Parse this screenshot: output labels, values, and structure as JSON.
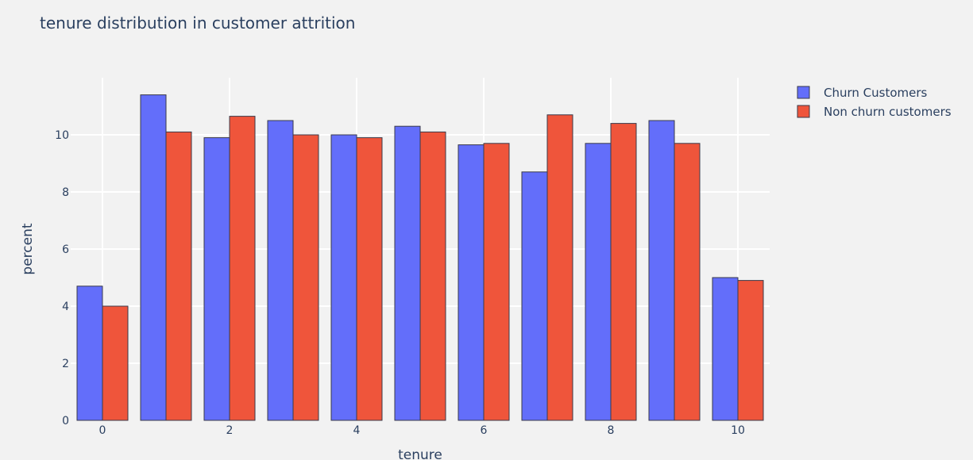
{
  "chart_data": {
    "type": "bar",
    "title": "tenure distribution in customer attrition",
    "xlabel": "tenure",
    "ylabel": "percent",
    "x": [
      0,
      1,
      2,
      3,
      4,
      5,
      6,
      7,
      8,
      9,
      10
    ],
    "x_ticks": [
      0,
      2,
      4,
      6,
      8,
      10
    ],
    "y_ticks": [
      0,
      2,
      4,
      6,
      8,
      10
    ],
    "ylim": [
      0,
      12
    ],
    "xlim": [
      -0.5,
      10.5
    ],
    "grid": true,
    "legend_position": "top-right",
    "series": [
      {
        "name": "Churn Customers",
        "color": "#636efa",
        "values": [
          4.7,
          11.4,
          9.9,
          10.5,
          10.0,
          10.3,
          9.65,
          8.7,
          9.7,
          10.5,
          5.0
        ]
      },
      {
        "name": "Non churn customers",
        "color": "#ef553b",
        "values": [
          4.0,
          10.1,
          10.65,
          10.0,
          9.9,
          10.1,
          9.7,
          10.7,
          10.4,
          9.7,
          4.9
        ]
      }
    ]
  }
}
